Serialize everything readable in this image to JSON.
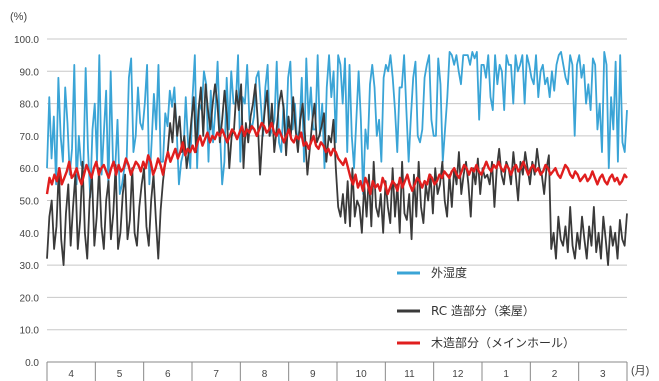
{
  "chart_data": {
    "type": "line",
    "ylabel": "(%)",
    "xlabel": "(月)",
    "ylim": [
      0,
      100
    ],
    "yticks": [
      "0.0",
      "10.0",
      "20.0",
      "30.0",
      "40.0",
      "50.0",
      "60.0",
      "70.0",
      "80.0",
      "90.0",
      "100.0"
    ],
    "months": [
      "4",
      "5",
      "6",
      "7",
      "8",
      "9",
      "10",
      "11",
      "12",
      "1",
      "2",
      "3"
    ],
    "grid": true,
    "legend_position": "bottom-right",
    "series": [
      {
        "name": "外湿度",
        "color": "#3aa4d6",
        "values": [
          60,
          82,
          63,
          76,
          55,
          88,
          70,
          62,
          85,
          74,
          58,
          66,
          92,
          55,
          70,
          61,
          60,
          91,
          66,
          51,
          72,
          80,
          62,
          95,
          58,
          71,
          84,
          53,
          90,
          62,
          60,
          75,
          52,
          55,
          60,
          62,
          88,
          94,
          65,
          70,
          85,
          74,
          72,
          80,
          92,
          55,
          68,
          83,
          72,
          92,
          62,
          62,
          77,
          73,
          84,
          79,
          85,
          72,
          55,
          62,
          65,
          82,
          68,
          60,
          82,
          95,
          60,
          80,
          78,
          90,
          86,
          62,
          84,
          68,
          78,
          93,
          72,
          55,
          62,
          88,
          72,
          90,
          80,
          80,
          95,
          62,
          82,
          80,
          92,
          75,
          72,
          76,
          88,
          90,
          80,
          70,
          85,
          92,
          70,
          72,
          75,
          93,
          68,
          65,
          80,
          67,
          88,
          93,
          72,
          80,
          68,
          72,
          88,
          62,
          94,
          75,
          85,
          72,
          72,
          95,
          70,
          80,
          60,
          85,
          95,
          82,
          90,
          68,
          95,
          92,
          80,
          94,
          65,
          92,
          70,
          60,
          75,
          90,
          75,
          52,
          72,
          66,
          86,
          92,
          85,
          70,
          75,
          62,
          88,
          92,
          90,
          95,
          88,
          78,
          65,
          85,
          85,
          95,
          78,
          62,
          76,
          88,
          93,
          70,
          68,
          72,
          88,
          92,
          95,
          75,
          70,
          70,
          94,
          86,
          62,
          72,
          82,
          96,
          95,
          92,
          95,
          90,
          86,
          95,
          95,
          95,
          92,
          96,
          94,
          96,
          75,
          92,
          92,
          88,
          95,
          82,
          78,
          95,
          86,
          92,
          90,
          78,
          95,
          92,
          92,
          80,
          95,
          90,
          92,
          95,
          80,
          95,
          92,
          88,
          86,
          95,
          82,
          90,
          92,
          86,
          88,
          82,
          90,
          84,
          92,
          95,
          96,
          92,
          88,
          86,
          95,
          92,
          70,
          92,
          95,
          88,
          92,
          80,
          86,
          78,
          94,
          92,
          72,
          80,
          65,
          96,
          92,
          60,
          82,
          72,
          93,
          62,
          95,
          68,
          65,
          78
        ]
      },
      {
        "name": "RC 造部分（楽屋）",
        "color": "#3a3a3a",
        "values": [
          32,
          45,
          50,
          35,
          42,
          60,
          38,
          30,
          46,
          55,
          36,
          48,
          58,
          35,
          44,
          62,
          40,
          32,
          50,
          58,
          36,
          45,
          60,
          42,
          35,
          50,
          56,
          38,
          46,
          61,
          35,
          40,
          52,
          58,
          38,
          44,
          60,
          40,
          36,
          48,
          55,
          60,
          42,
          36,
          50,
          58,
          44,
          32,
          47,
          56,
          62,
          65,
          74,
          68,
          80,
          70,
          76,
          65,
          70,
          60,
          66,
          75,
          82,
          65,
          78,
          85,
          70,
          86,
          78,
          72,
          80,
          86,
          80,
          68,
          75,
          84,
          76,
          60,
          70,
          72,
          84,
          78,
          86,
          60,
          74,
          68,
          76,
          80,
          86,
          75,
          58,
          70,
          78,
          84,
          70,
          80,
          65,
          72,
          80,
          84,
          78,
          64,
          76,
          70,
          82,
          72,
          65,
          75,
          80,
          70,
          58,
          66,
          74,
          80,
          68,
          70,
          73,
          77,
          62,
          70,
          68,
          75,
          60,
          48,
          45,
          52,
          43,
          56,
          42,
          60,
          45,
          50,
          48,
          40,
          55,
          45,
          58,
          42,
          62,
          48,
          45,
          52,
          40,
          56,
          48,
          43,
          60,
          45,
          55,
          40,
          62,
          46,
          44,
          52,
          38,
          58,
          45,
          62,
          48,
          43,
          55,
          50,
          58,
          46,
          60,
          52,
          55,
          62,
          50,
          45,
          58,
          48,
          60,
          55,
          65,
          52,
          58,
          62,
          55,
          45,
          60,
          55,
          63,
          52,
          60,
          57,
          58,
          55,
          62,
          48,
          60,
          66,
          58,
          55,
          62,
          60,
          55,
          65,
          58,
          50,
          62,
          58,
          65,
          60,
          55,
          62,
          58,
          66,
          60,
          58,
          52,
          60,
          64,
          35,
          40,
          32,
          45,
          38,
          36,
          42,
          34,
          48,
          36,
          32,
          40,
          35,
          45,
          38,
          32,
          42,
          36,
          48,
          34,
          40,
          32,
          45,
          38,
          30,
          42,
          36,
          40,
          32,
          44,
          38,
          36,
          46
        ]
      },
      {
        "name": "木造部分（メインホール）",
        "color": "#e01e1e",
        "values": [
          52,
          57,
          55,
          58,
          56,
          60,
          55,
          57,
          59,
          62,
          57,
          58,
          60,
          57,
          55,
          58,
          61,
          59,
          57,
          60,
          62,
          58,
          60,
          61,
          59,
          57,
          60,
          62,
          58,
          61,
          59,
          60,
          63,
          61,
          58,
          60,
          62,
          61,
          59,
          62,
          60,
          64,
          62,
          58,
          60,
          63,
          61,
          58,
          62,
          65,
          62,
          64,
          66,
          63,
          65,
          68,
          64,
          66,
          65,
          67,
          65,
          68,
          70,
          67,
          69,
          71,
          68,
          70,
          69,
          71,
          70,
          72,
          70,
          68,
          70,
          72,
          71,
          69,
          71,
          73,
          70,
          72,
          71,
          73,
          72,
          70,
          72,
          74,
          73,
          71,
          72,
          74,
          71,
          70,
          72,
          70,
          68,
          70,
          72,
          69,
          68,
          70,
          69,
          71,
          67,
          68,
          66,
          68,
          70,
          67,
          66,
          68,
          67,
          65,
          66,
          64,
          66,
          65,
          63,
          62,
          61,
          63,
          60,
          57,
          55,
          58,
          54,
          56,
          53,
          57,
          55,
          52,
          56,
          54,
          55,
          53,
          57,
          55,
          52,
          54,
          56,
          55,
          53,
          57,
          54,
          56,
          58,
          55,
          53,
          55,
          57,
          56,
          54,
          56,
          55,
          58,
          57,
          55,
          56,
          58,
          57,
          59,
          58,
          57,
          59,
          60,
          58,
          57,
          59,
          61,
          60,
          58,
          60,
          59,
          61,
          59,
          58,
          60,
          62,
          60,
          59,
          61,
          60,
          62,
          60,
          59,
          61,
          60,
          58,
          60,
          61,
          59,
          60,
          62,
          60,
          58,
          60,
          61,
          59,
          60,
          58,
          59,
          61,
          60,
          58,
          59,
          60,
          58,
          57,
          59,
          61,
          60,
          58,
          57,
          59,
          58,
          56,
          57,
          58,
          56,
          57,
          59,
          57,
          55,
          57,
          58,
          56,
          55,
          57,
          58,
          56,
          57,
          55,
          56,
          58,
          57
        ]
      }
    ]
  }
}
